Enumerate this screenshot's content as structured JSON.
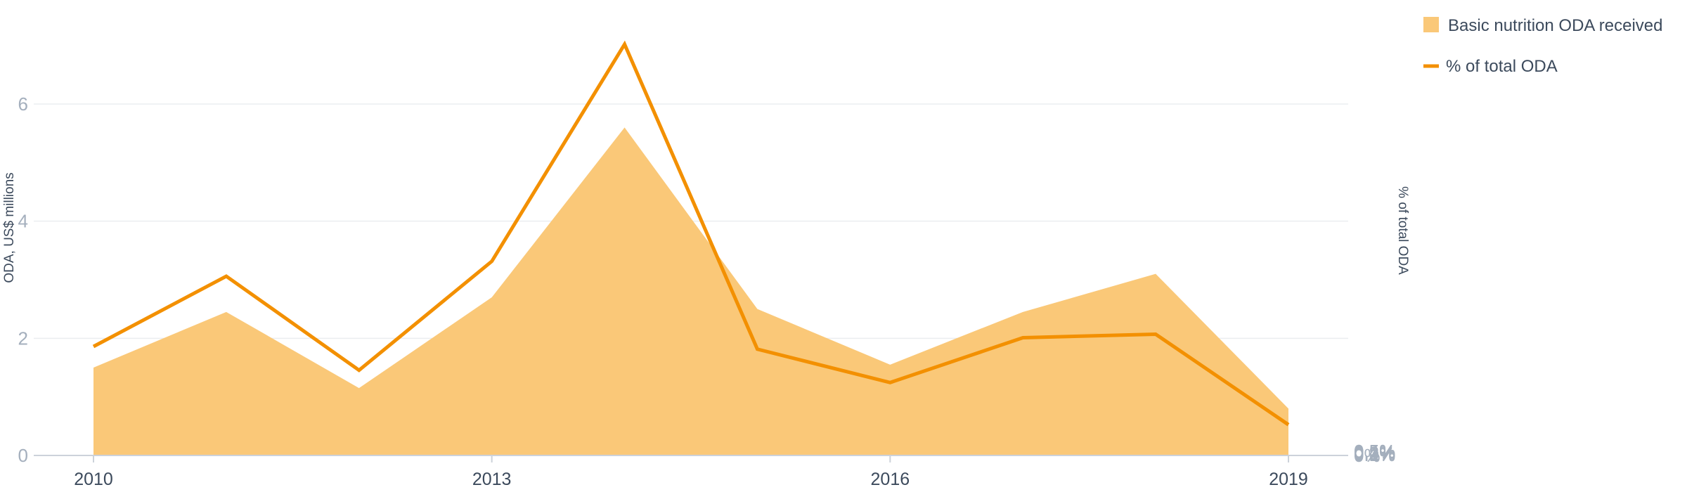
{
  "chart_data": {
    "type": "area",
    "x": [
      2010,
      2011,
      2012,
      2013,
      2014,
      2015,
      2016,
      2017,
      2018,
      2019
    ],
    "x_tick_labels": [
      "2010",
      "2013",
      "2016",
      "2019"
    ],
    "series": [
      {
        "name": "Basic nutrition ODA received",
        "type": "area",
        "axis": "left",
        "color": "#fac878",
        "values": [
          1.5,
          2.45,
          1.15,
          2.7,
          5.6,
          2.5,
          1.55,
          2.45,
          3.1,
          0.8
        ]
      },
      {
        "name": "% of total ODA",
        "type": "line",
        "axis": "right",
        "color": "#f39000",
        "values": [
          0.124,
          0.204,
          0.097,
          0.221,
          0.468,
          0.121,
          0.083,
          0.134,
          0.138,
          0.035
        ]
      }
    ],
    "ylabel": "ODA, US$ millions",
    "ylim": [
      0,
      7.5
    ],
    "y_ticks": [
      "0",
      "2",
      "4",
      "6"
    ],
    "y2label": "% of total ODA",
    "y2lim": [
      0,
      0.5
    ],
    "y2_ticks": [
      "0%",
      "0.1%",
      "0.2%",
      "0.3%",
      "0.4%",
      "0.5%"
    ],
    "grid": true,
    "legend_position": "top-right",
    "grid_color": "#ebedf0",
    "axis_color": "#ccd2da"
  }
}
